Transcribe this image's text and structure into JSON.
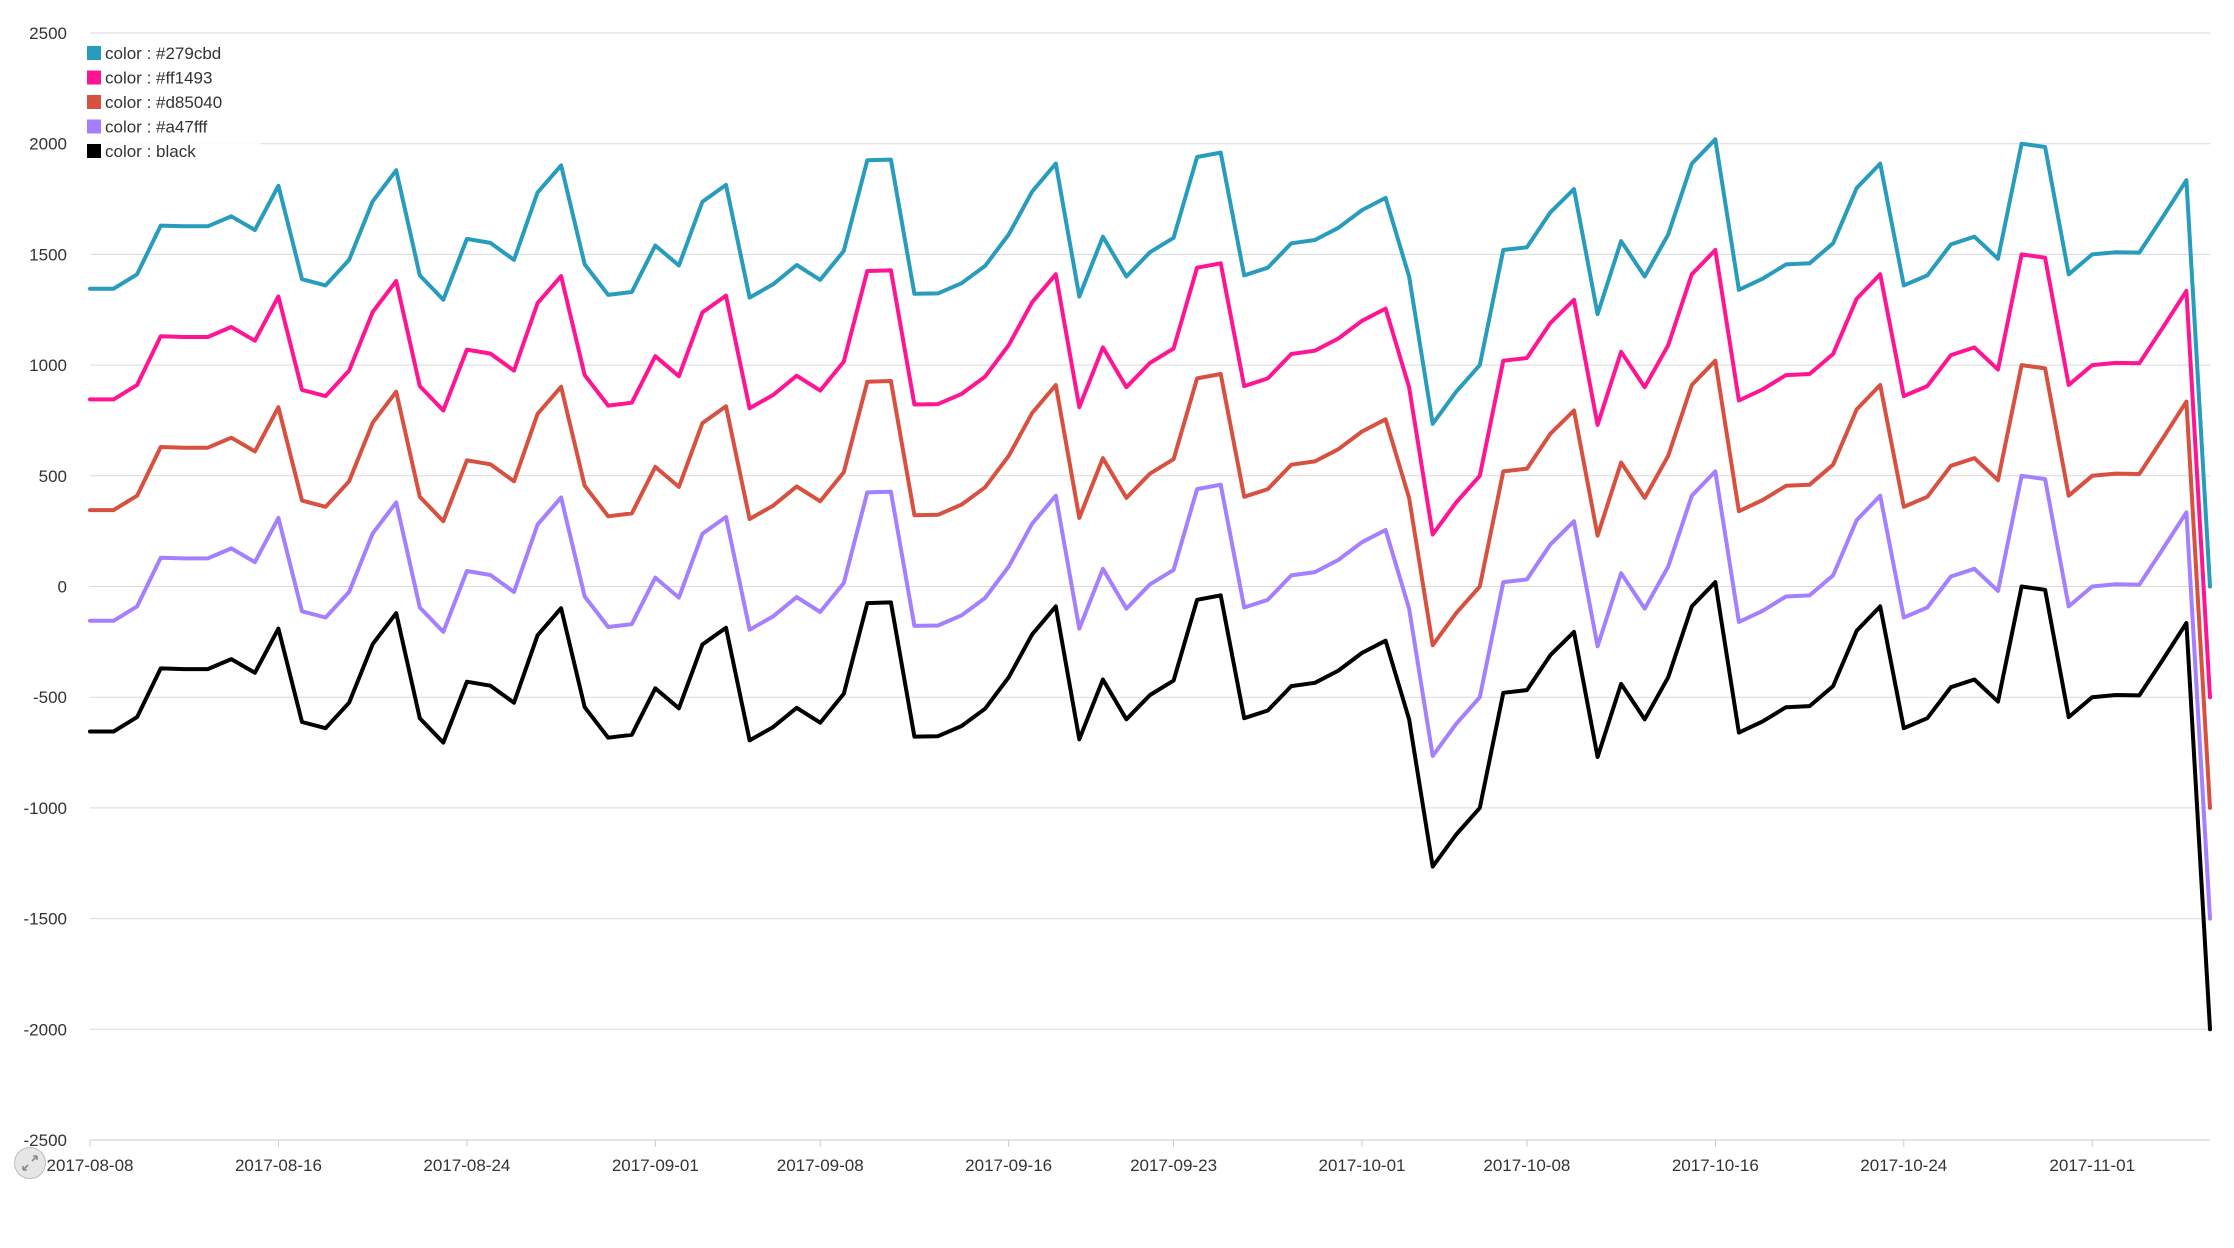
{
  "chart_data": {
    "type": "line",
    "title": "",
    "xlabel": "",
    "ylabel": "",
    "ylim": [
      -2500,
      2500
    ],
    "xlim": [
      "2017-08-08",
      "2017-11-06"
    ],
    "grid": true,
    "legend_position": "top-left",
    "y_ticks": [
      "2500",
      "2000",
      "1500",
      "1000",
      "500",
      "0",
      "-500",
      "-1000",
      "-1500",
      "-2000",
      "-2500"
    ],
    "x_ticks": [
      "2017-08-08",
      "2017-08-16",
      "2017-08-24",
      "2017-09-01",
      "2017-09-08",
      "2017-09-16",
      "2017-09-23",
      "2017-10-01",
      "2017-10-08",
      "2017-10-16",
      "2017-10-24",
      "2017-11-01"
    ],
    "x": [
      "2017-08-08",
      "2017-08-09",
      "2017-08-10",
      "2017-08-11",
      "2017-08-12",
      "2017-08-13",
      "2017-08-14",
      "2017-08-15",
      "2017-08-16",
      "2017-08-17",
      "2017-08-18",
      "2017-08-19",
      "2017-08-20",
      "2017-08-21",
      "2017-08-22",
      "2017-08-23",
      "2017-08-24",
      "2017-08-25",
      "2017-08-26",
      "2017-08-27",
      "2017-08-28",
      "2017-08-29",
      "2017-08-30",
      "2017-08-31",
      "2017-09-01",
      "2017-09-02",
      "2017-09-03",
      "2017-09-04",
      "2017-09-05",
      "2017-09-06",
      "2017-09-07",
      "2017-09-08",
      "2017-09-09",
      "2017-09-10",
      "2017-09-11",
      "2017-09-12",
      "2017-09-13",
      "2017-09-14",
      "2017-09-15",
      "2017-09-16",
      "2017-09-17",
      "2017-09-18",
      "2017-09-19",
      "2017-09-20",
      "2017-09-21",
      "2017-09-22",
      "2017-09-23",
      "2017-09-24",
      "2017-09-25",
      "2017-09-26",
      "2017-09-27",
      "2017-09-28",
      "2017-09-29",
      "2017-09-30",
      "2017-10-01",
      "2017-10-02",
      "2017-10-03",
      "2017-10-04",
      "2017-10-05",
      "2017-10-06",
      "2017-10-07",
      "2017-10-08",
      "2017-10-09",
      "2017-10-10",
      "2017-10-11",
      "2017-10-12",
      "2017-10-13",
      "2017-10-14",
      "2017-10-15",
      "2017-10-16",
      "2017-10-17",
      "2017-10-18",
      "2017-10-19",
      "2017-10-20",
      "2017-10-21",
      "2017-10-22",
      "2017-10-23",
      "2017-10-24",
      "2017-10-25",
      "2017-10-26",
      "2017-10-27",
      "2017-10-28",
      "2017-10-29",
      "2017-10-30",
      "2017-10-31",
      "2017-11-01",
      "2017-11-02",
      "2017-11-03",
      "2017-11-04",
      "2017-11-05",
      "2017-11-06"
    ],
    "base_values": [
      -655,
      -655,
      -590,
      -370,
      -373,
      -373,
      -328,
      -390,
      -190,
      -612,
      -640,
      -525,
      -260,
      -120,
      -595,
      -705,
      -430,
      -448,
      -525,
      -220,
      -98,
      -545,
      -683,
      -670,
      -460,
      -550,
      -262,
      -186,
      -695,
      -635,
      -548,
      -615,
      -484,
      -75,
      -72,
      -678,
      -676,
      -630,
      -552,
      -410,
      -216,
      -90,
      -690,
      -420,
      -600,
      -490,
      -425,
      -60,
      -40,
      -595,
      -560,
      -450,
      -435,
      -380,
      -300,
      -245,
      -600,
      -1265,
      -1120,
      -1000,
      -480,
      -468,
      -310,
      -205,
      -770,
      -440,
      -600,
      -410,
      -90,
      20,
      -660,
      -610,
      -545,
      -540,
      -450,
      -200,
      -90,
      -640,
      -595,
      -455,
      -420,
      -520,
      0,
      -15,
      -590,
      -500,
      -490,
      -492,
      -330,
      -165,
      -2000
    ],
    "series": [
      {
        "name": "color : #279cbd",
        "color": "#279cbd",
        "offset": 2000
      },
      {
        "name": "color : #ff1493",
        "color": "#ff1493",
        "offset": 1500
      },
      {
        "name": "color : #d85040",
        "color": "#d85040",
        "offset": 1000
      },
      {
        "name": "color : #a47fff",
        "color": "#a47fff",
        "offset": 500
      },
      {
        "name": "color : black",
        "color": "#000000",
        "offset": 0
      }
    ]
  }
}
